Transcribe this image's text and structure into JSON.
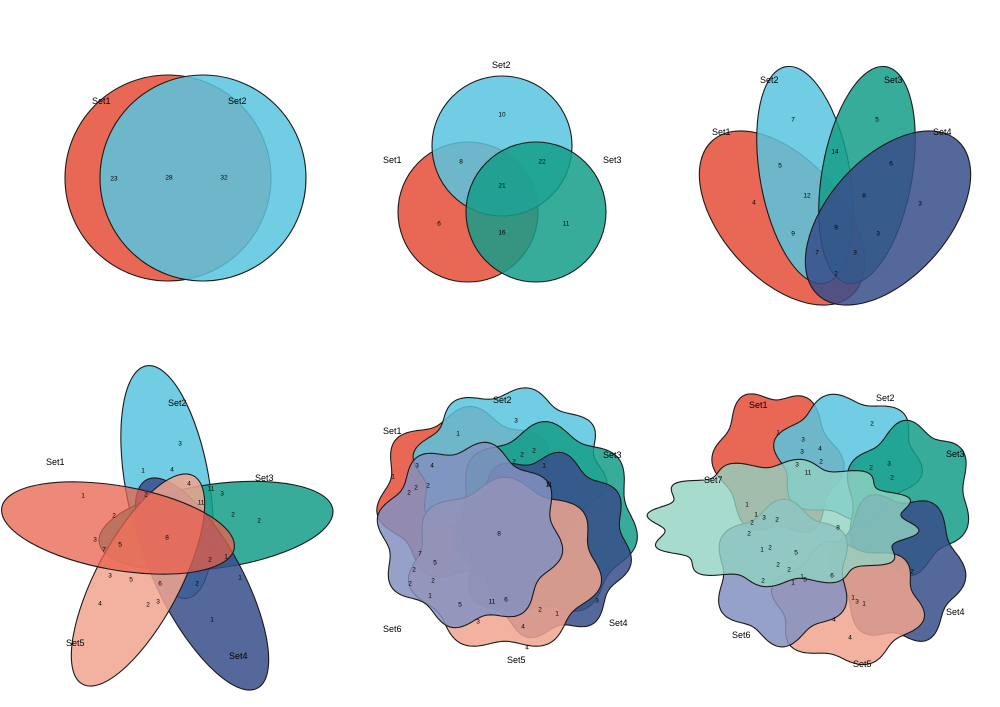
{
  "colors": {
    "Set1": "#e8604c",
    "Set2": "#58c4de",
    "Set3": "#159e88",
    "Set4": "#374e8a",
    "Set5": "#f1a48e",
    "Set6": "#8390bf",
    "Set7": "#91d2c2"
  },
  "chart_data": [
    {
      "type": "venn",
      "sets": [
        "Set1",
        "Set2"
      ],
      "regions": [
        {
          "sets": [
            "Set1"
          ],
          "value": "23"
        },
        {
          "sets": [
            "Set1",
            "Set2"
          ],
          "value": "28"
        },
        {
          "sets": [
            "Set2"
          ],
          "value": "32"
        }
      ]
    },
    {
      "type": "venn",
      "sets": [
        "Set1",
        "Set2",
        "Set3"
      ],
      "regions": [
        {
          "sets": [
            "Set2"
          ],
          "value": "10"
        },
        {
          "sets": [
            "Set1",
            "Set2"
          ],
          "value": "8"
        },
        {
          "sets": [
            "Set2",
            "Set3"
          ],
          "value": "22"
        },
        {
          "sets": [
            "Set1",
            "Set2",
            "Set3"
          ],
          "value": "21"
        },
        {
          "sets": [
            "Set1"
          ],
          "value": "6"
        },
        {
          "sets": [
            "Set3"
          ],
          "value": "11"
        },
        {
          "sets": [
            "Set1",
            "Set3"
          ],
          "value": "16"
        }
      ]
    },
    {
      "type": "venn",
      "sets": [
        "Set1",
        "Set2",
        "Set3",
        "Set4"
      ],
      "regions": [
        {
          "value": "7"
        },
        {
          "value": "5"
        },
        {
          "value": "14"
        },
        {
          "value": "5"
        },
        {
          "value": "4"
        },
        {
          "value": "6"
        },
        {
          "value": "12"
        },
        {
          "value": "8"
        },
        {
          "value": "3"
        },
        {
          "value": "9"
        },
        {
          "value": "9"
        },
        {
          "value": "3"
        },
        {
          "value": "7"
        },
        {
          "value": "3"
        },
        {
          "value": "2"
        }
      ]
    },
    {
      "type": "venn",
      "sets": [
        "Set1",
        "Set2",
        "Set3",
        "Set4",
        "Set5"
      ],
      "regions": [
        {
          "value": "3"
        },
        {
          "value": "1"
        },
        {
          "value": "4"
        },
        {
          "value": "1"
        },
        {
          "value": "4"
        },
        {
          "value": "2"
        },
        {
          "value": "11"
        },
        {
          "value": "3"
        },
        {
          "value": "2"
        },
        {
          "value": "2"
        },
        {
          "value": "11"
        },
        {
          "value": "2"
        },
        {
          "value": "3"
        },
        {
          "value": "7"
        },
        {
          "value": "5"
        },
        {
          "value": "8"
        },
        {
          "value": "2"
        },
        {
          "value": "1"
        },
        {
          "value": "3"
        },
        {
          "value": "5"
        },
        {
          "value": "6"
        },
        {
          "value": "2"
        },
        {
          "value": "1"
        },
        {
          "value": "2"
        },
        {
          "value": "3"
        },
        {
          "value": "4"
        },
        {
          "value": "1"
        }
      ]
    },
    {
      "type": "venn",
      "sets": [
        "Set1",
        "Set2",
        "Set3",
        "Set4",
        "Set5",
        "Set6"
      ],
      "regions": [
        {
          "value": "3"
        },
        {
          "value": "1"
        },
        {
          "value": "2"
        },
        {
          "value": "1"
        },
        {
          "value": "2"
        },
        {
          "value": "2"
        },
        {
          "value": "1"
        },
        {
          "value": "11"
        },
        {
          "value": "3"
        },
        {
          "value": "1"
        },
        {
          "value": "4"
        },
        {
          "value": "2"
        },
        {
          "value": "2"
        },
        {
          "value": "2"
        },
        {
          "value": "8"
        },
        {
          "value": "7"
        },
        {
          "value": "5"
        },
        {
          "value": "2"
        },
        {
          "value": "2"
        },
        {
          "value": "2"
        },
        {
          "value": "1"
        },
        {
          "value": "5"
        },
        {
          "value": "11"
        },
        {
          "value": "6"
        },
        {
          "value": "3"
        },
        {
          "value": "2"
        },
        {
          "value": "1"
        },
        {
          "value": "3"
        },
        {
          "value": "4"
        },
        {
          "value": "4"
        }
      ]
    },
    {
      "type": "venn",
      "sets": [
        "Set1",
        "Set2",
        "Set3",
        "Set4",
        "Set5",
        "Set6",
        "Set7"
      ],
      "regions": [
        {
          "value": "1"
        },
        {
          "value": "3"
        },
        {
          "value": "3"
        },
        {
          "value": "4"
        },
        {
          "value": "2"
        },
        {
          "value": "11"
        },
        {
          "value": "3"
        },
        {
          "value": "2"
        },
        {
          "value": "3"
        },
        {
          "value": "2"
        },
        {
          "value": "2"
        },
        {
          "value": "1"
        },
        {
          "value": "1"
        },
        {
          "value": "2"
        },
        {
          "value": "8"
        },
        {
          "value": "3"
        },
        {
          "value": "2"
        },
        {
          "value": "2"
        },
        {
          "value": "1"
        },
        {
          "value": "2"
        },
        {
          "value": "2"
        },
        {
          "value": "5"
        },
        {
          "value": "2"
        },
        {
          "value": "1"
        },
        {
          "value": "2"
        },
        {
          "value": "1"
        },
        {
          "value": "5"
        },
        {
          "value": "6"
        },
        {
          "value": "1"
        },
        {
          "value": "1"
        },
        {
          "value": "3"
        },
        {
          "value": "4"
        },
        {
          "value": "4"
        },
        {
          "value": "2"
        }
      ]
    }
  ]
}
